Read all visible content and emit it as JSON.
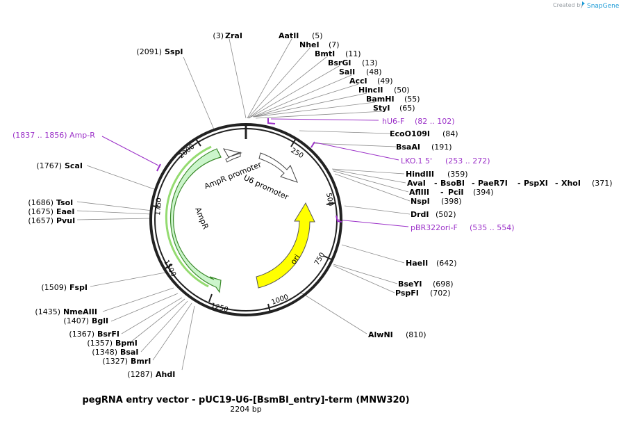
{
  "branding": {
    "created_by": "Created by",
    "app": "SnapGene"
  },
  "title": "pegRNA entry vector - pUC19-U6-[BsmBI_entry]-term (MNW320)",
  "subtitle": "2204 bp",
  "ticks": [
    "250",
    "500",
    "750",
    "1000",
    "1250",
    "1500",
    "1750",
    "2000"
  ],
  "features": {
    "ampr_promoter": "AmpR promoter",
    "u6_promoter": "U6 promoter",
    "ampr": "AmpR",
    "ori": "ori"
  },
  "colors": {
    "ampr": "#ccf5cc",
    "ori": "#ffff00",
    "primer": "#9b30c8",
    "promoter": "#ffffff"
  },
  "sites": [
    {
      "name": "ZraI",
      "pos": "(3)"
    },
    {
      "name": "AatII",
      "pos": "(5)"
    },
    {
      "name": "NheI",
      "pos": "(7)"
    },
    {
      "name": "BmtI",
      "pos": "(11)"
    },
    {
      "name": "BsrGI",
      "pos": "(13)"
    },
    {
      "name": "SalI",
      "pos": "(48)"
    },
    {
      "name": "AccI",
      "pos": "(49)"
    },
    {
      "name": "HincII",
      "pos": "(50)"
    },
    {
      "name": "BamHI",
      "pos": "(55)"
    },
    {
      "name": "StyI",
      "pos": "(65)"
    },
    {
      "name": "EcoO109I",
      "pos": "(84)"
    },
    {
      "name": "BsaAI",
      "pos": "(191)"
    },
    {
      "name": "HindIII",
      "pos": "(359)"
    },
    {
      "name": "AvaI",
      "pos": ""
    },
    {
      "name": "BsoBI",
      "pos": ""
    },
    {
      "name": "PaeR7I",
      "pos": ""
    },
    {
      "name": "PspXI",
      "pos": ""
    },
    {
      "name": "XhoI",
      "pos": "(371)"
    },
    {
      "name": "AflIII",
      "pos": ""
    },
    {
      "name": "PciI",
      "pos": "(394)"
    },
    {
      "name": "NspI",
      "pos": "(398)"
    },
    {
      "name": "DrdI",
      "pos": "(502)"
    },
    {
      "name": "HaeII",
      "pos": "(642)"
    },
    {
      "name": "BseYI",
      "pos": "(698)"
    },
    {
      "name": "PspFI",
      "pos": "(702)"
    },
    {
      "name": "AlwNI",
      "pos": "(810)"
    },
    {
      "name": "AhdI",
      "pos": "(1287)"
    },
    {
      "name": "BmrI",
      "pos": "(1327)"
    },
    {
      "name": "BsaI",
      "pos": "(1348)"
    },
    {
      "name": "BpmI",
      "pos": "(1357)"
    },
    {
      "name": "BsrFI",
      "pos": "(1367)"
    },
    {
      "name": "BglI",
      "pos": "(1407)"
    },
    {
      "name": "NmeAIII",
      "pos": "(1435)"
    },
    {
      "name": "FspI",
      "pos": "(1509)"
    },
    {
      "name": "PvuI",
      "pos": "(1657)"
    },
    {
      "name": "EaeI",
      "pos": "(1675)"
    },
    {
      "name": "TsoI",
      "pos": "(1686)"
    },
    {
      "name": "ScaI",
      "pos": "(1767)"
    },
    {
      "name": "SspI",
      "pos": "(2091)"
    }
  ],
  "primers": [
    {
      "name": "hU6-F",
      "range": "(82 .. 102)"
    },
    {
      "name": "LKO.1 5'",
      "range": "(253 .. 272)"
    },
    {
      "name": "pBR322ori-F",
      "range": "(535 .. 554)"
    },
    {
      "label": "(1837 .. 1856)  Amp-R"
    }
  ]
}
